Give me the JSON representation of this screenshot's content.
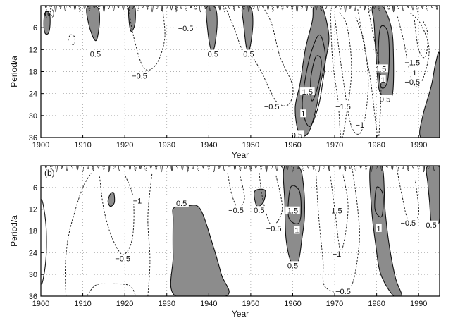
{
  "chart_data": [
    {
      "type": "contour",
      "panel_label": "(a)",
      "xlabel": "Year",
      "ylabel": "Period/a",
      "xlim": [
        1900,
        1995
      ],
      "ylim": [
        0,
        36
      ],
      "y_inverted": true,
      "x_ticks": [
        1900,
        1910,
        1920,
        1930,
        1940,
        1950,
        1960,
        1970,
        1980,
        1990
      ],
      "y_ticks": [
        6,
        12,
        18,
        24,
        30,
        36
      ],
      "grid": "dotted",
      "shading": "positive values shaded gray; positive contours solid, negative contours dashed",
      "contour_labels": [
        {
          "text": "0.5",
          "x": 1913,
          "y": 13.2
        },
        {
          "text": "−0.5",
          "x": 1923.5,
          "y": 19.2
        },
        {
          "text": "−0.5",
          "x": 1934.5,
          "y": 6.2
        },
        {
          "text": "0.5",
          "x": 1941,
          "y": 13.2
        },
        {
          "text": "0.5",
          "x": 1949.5,
          "y": 13.2
        },
        {
          "text": "−0.5",
          "x": 1955,
          "y": 27.5
        },
        {
          "text": "1.5",
          "x": 1963.5,
          "y": 23.5
        },
        {
          "text": "1",
          "x": 1962.5,
          "y": 29.5
        },
        {
          "text": "0.5",
          "x": 1961,
          "y": 35.3
        },
        {
          "text": "−1.5",
          "x": 1972,
          "y": 27.5
        },
        {
          "text": "−1",
          "x": 1976,
          "y": 32.5
        },
        {
          "text": "1.5",
          "x": 1981,
          "y": 17.2
        },
        {
          "text": "1",
          "x": 1981.5,
          "y": 20.2
        },
        {
          "text": "0.5",
          "x": 1982,
          "y": 25.5
        },
        {
          "text": "−1.5",
          "x": 1988.5,
          "y": 15.5
        },
        {
          "text": "−1",
          "x": 1988.5,
          "y": 18.3
        },
        {
          "text": "−0.5",
          "x": 1988.5,
          "y": 20.8
        }
      ]
    },
    {
      "type": "contour",
      "panel_label": "(b)",
      "xlabel": "Year",
      "ylabel": "Period/a",
      "xlim": [
        1900,
        1995
      ],
      "ylim": [
        0,
        36
      ],
      "y_inverted": true,
      "x_ticks": [
        1900,
        1910,
        1920,
        1930,
        1940,
        1950,
        1960,
        1970,
        1980,
        1990
      ],
      "y_ticks": [
        6,
        12,
        18,
        24,
        30,
        36
      ],
      "grid": "dotted",
      "shading": "positive values shaded gray; positive contours solid, negative contours dashed",
      "contour_labels": [
        {
          "text": "−1",
          "x": 1923,
          "y": 9.6
        },
        {
          "text": "0.5",
          "x": 1933.5,
          "y": 10.3
        },
        {
          "text": "−0.5",
          "x": 1919.5,
          "y": 25.6
        },
        {
          "text": "−0.5",
          "x": 1946.5,
          "y": 12.3
        },
        {
          "text": "0.5",
          "x": 1952,
          "y": 12.3
        },
        {
          "text": "−0.5",
          "x": 1955.5,
          "y": 17.3
        },
        {
          "text": "1.5",
          "x": 1960,
          "y": 12.4
        },
        {
          "text": "1",
          "x": 1961,
          "y": 17.8
        },
        {
          "text": "0.5",
          "x": 1960,
          "y": 27.5
        },
        {
          "text": "1.5",
          "x": 1970.5,
          "y": 12.4
        },
        {
          "text": "−1",
          "x": 1970.5,
          "y": 24.3
        },
        {
          "text": "−0.5",
          "x": 1972,
          "y": 34.6
        },
        {
          "text": "1",
          "x": 1980.5,
          "y": 17.3
        },
        {
          "text": "−0.5",
          "x": 1987.5,
          "y": 15.8
        },
        {
          "text": "0.5",
          "x": 1993,
          "y": 16.3
        }
      ]
    }
  ]
}
